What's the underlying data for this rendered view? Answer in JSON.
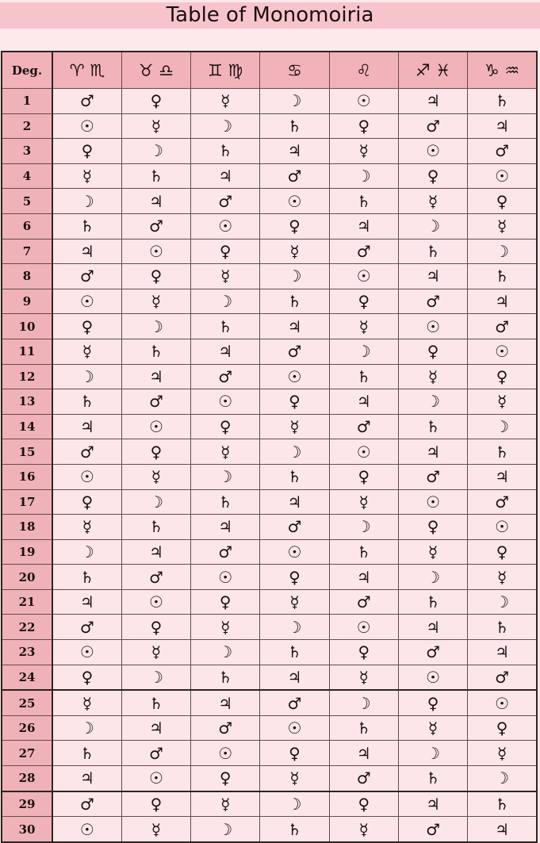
{
  "title": "Table of Monomoiria",
  "colors": {
    "title_bar": "#f8c4cc",
    "header": "#f2b2ba",
    "degree_column": "#efb2b8",
    "cell": "#fde6ea",
    "background": "#fde8ec"
  },
  "headers": [
    "Deg.",
    "♈ ♏",
    "♉ ♎",
    "♊ ♍",
    "♋",
    "♌",
    "♐ ♓",
    "♑ ♒"
  ],
  "rows": [
    {
      "deg": "1",
      "cells": [
        "♂",
        "♀",
        "☿",
        "☽",
        "☉",
        "♃",
        "♄"
      ]
    },
    {
      "deg": "2",
      "cells": [
        "☉",
        "☿",
        "☽",
        "♄",
        "♀",
        "♂",
        "♃"
      ]
    },
    {
      "deg": "3",
      "cells": [
        "♀",
        "☽",
        "♄",
        "♃",
        "☿",
        "☉",
        "♂"
      ]
    },
    {
      "deg": "4",
      "cells": [
        "☿",
        "♄",
        "♃",
        "♂",
        "☽",
        "♀",
        "☉"
      ]
    },
    {
      "deg": "5",
      "cells": [
        "☽",
        "♃",
        "♂",
        "☉",
        "♄",
        "☿",
        "♀"
      ]
    },
    {
      "deg": "6",
      "cells": [
        "♄",
        "♂",
        "☉",
        "♀",
        "♃",
        "☽",
        "☿"
      ]
    },
    {
      "deg": "7",
      "cells": [
        "♃",
        "☉",
        "♀",
        "☿",
        "♂",
        "♄",
        "☽"
      ]
    },
    {
      "deg": "8",
      "cells": [
        "♂",
        "♀",
        "☿",
        "☽",
        "☉",
        "♃",
        "♄"
      ]
    },
    {
      "deg": "9",
      "cells": [
        "☉",
        "☿",
        "☽",
        "♄",
        "♀",
        "♂",
        "♃"
      ]
    },
    {
      "deg": "10",
      "cells": [
        "♀",
        "☽",
        "♄",
        "♃",
        "☿",
        "☉",
        "♂"
      ]
    },
    {
      "deg": "11",
      "cells": [
        "☿",
        "♄",
        "♃",
        "♂",
        "☽",
        "♀",
        "☉"
      ]
    },
    {
      "deg": "12",
      "cells": [
        "☽",
        "♃",
        "♂",
        "☉",
        "♄",
        "☿",
        "♀"
      ]
    },
    {
      "deg": "13",
      "cells": [
        "♄",
        "♂",
        "☉",
        "♀",
        "♃",
        "☽",
        "☿"
      ]
    },
    {
      "deg": "14",
      "cells": [
        "♃",
        "☉",
        "♀",
        "☿",
        "♂",
        "♄",
        "☽"
      ]
    },
    {
      "deg": "15",
      "cells": [
        "♂",
        "♀",
        "☿",
        "☽",
        "☉",
        "♃",
        "♄"
      ]
    },
    {
      "deg": "16",
      "cells": [
        "☉",
        "☿",
        "☽",
        "♄",
        "♀",
        "♂",
        "♃"
      ]
    },
    {
      "deg": "17",
      "cells": [
        "♀",
        "☽",
        "♄",
        "♃",
        "☿",
        "☉",
        "♂"
      ]
    },
    {
      "deg": "18",
      "cells": [
        "☿",
        "♄",
        "♃",
        "♂",
        "☽",
        "♀",
        "☉"
      ]
    },
    {
      "deg": "19",
      "cells": [
        "☽",
        "♃",
        "♂",
        "☉",
        "♄",
        "☿",
        "♀"
      ]
    },
    {
      "deg": "20",
      "cells": [
        "♄",
        "♂",
        "☉",
        "♀",
        "♃",
        "☽",
        "☿"
      ]
    },
    {
      "deg": "21",
      "cells": [
        "♃",
        "☉",
        "♀",
        "☿",
        "♂",
        "♄",
        "☽"
      ]
    },
    {
      "deg": "22",
      "cells": [
        "♂",
        "♀",
        "☿",
        "☽",
        "☉",
        "♃",
        "♄"
      ]
    },
    {
      "deg": "23",
      "cells": [
        "☉",
        "☿",
        "☽",
        "♄",
        "♀",
        "♂",
        "♃"
      ]
    },
    {
      "deg": "24",
      "cells": [
        "♀",
        "☽",
        "♄",
        "♃",
        "☿",
        "☉",
        "♂"
      ]
    },
    {
      "deg": "25",
      "cells": [
        "☿",
        "♄",
        "♃",
        "♂",
        "☽",
        "♀",
        "☉"
      ]
    },
    {
      "deg": "26",
      "cells": [
        "☽",
        "♃",
        "♂",
        "☉",
        "♄",
        "☿",
        "♀"
      ]
    },
    {
      "deg": "27",
      "cells": [
        "♄",
        "♂",
        "☉",
        "♀",
        "♃",
        "☽",
        "☿"
      ]
    },
    {
      "deg": "28",
      "cells": [
        "♃",
        "☉",
        "♀",
        "☿",
        "♂",
        "♄",
        "☽"
      ]
    },
    {
      "deg": "29",
      "cells": [
        "♂",
        "♀",
        "☿",
        "☽",
        "♀",
        "♃",
        "♄"
      ]
    },
    {
      "deg": "30",
      "cells": [
        "☉",
        "☿",
        "☽",
        "♄",
        "☿",
        "♂",
        "♃"
      ]
    }
  ]
}
